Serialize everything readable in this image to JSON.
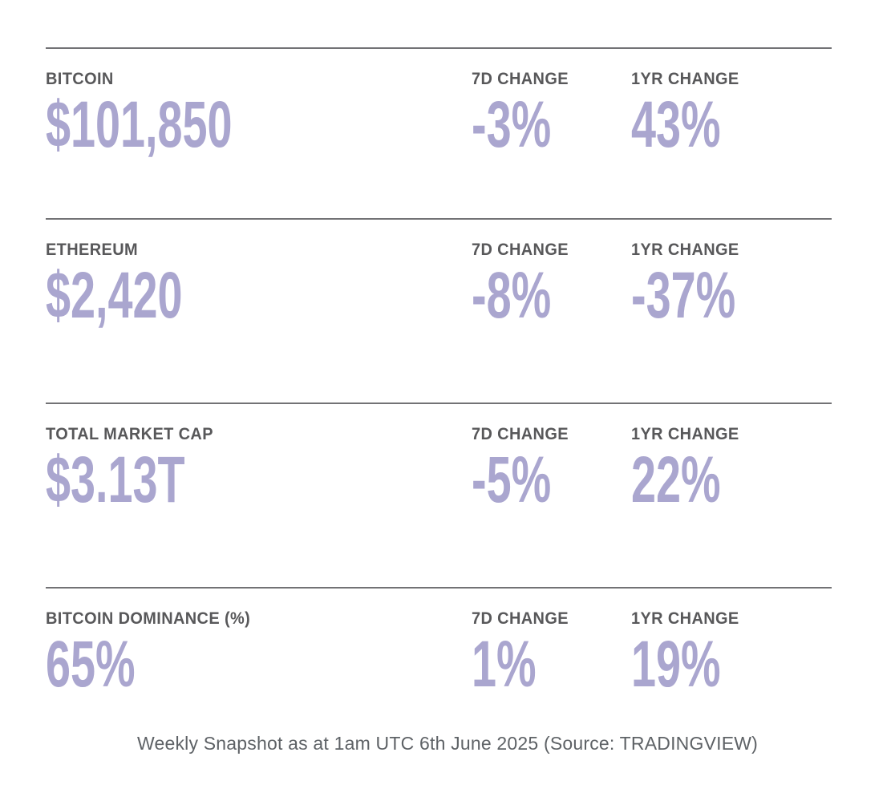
{
  "chart_data": {
    "type": "table",
    "headers": {
      "change_7d": "7D CHANGE",
      "change_1yr": "1YR CHANGE"
    },
    "rows": [
      {
        "label": "BITCOIN",
        "value": "$101,850",
        "change_7d": "-3%",
        "change_1yr": "43%"
      },
      {
        "label": "ETHEREUM",
        "value": "$2,420",
        "change_7d": "-8%",
        "change_1yr": "-37%"
      },
      {
        "label": "TOTAL MARKET CAP",
        "value": "$3.13T",
        "change_7d": "-5%",
        "change_1yr": "22%"
      },
      {
        "label": "BITCOIN DOMINANCE (%)",
        "value": "65%",
        "change_7d": "1%",
        "change_1yr": "19%"
      }
    ],
    "layout": {
      "grid": "off",
      "row_separator": "horizontal-rule"
    }
  },
  "colors": {
    "value_accent": "#aaa6cf",
    "label_gray": "#58585a",
    "rule_gray": "#727275",
    "footer_gray": "#5e6266",
    "background": "#ffffff"
  },
  "footer": {
    "caption": "Weekly Snapshot as at 1am UTC 6th June 2025 (Source: TRADINGVIEW)"
  }
}
